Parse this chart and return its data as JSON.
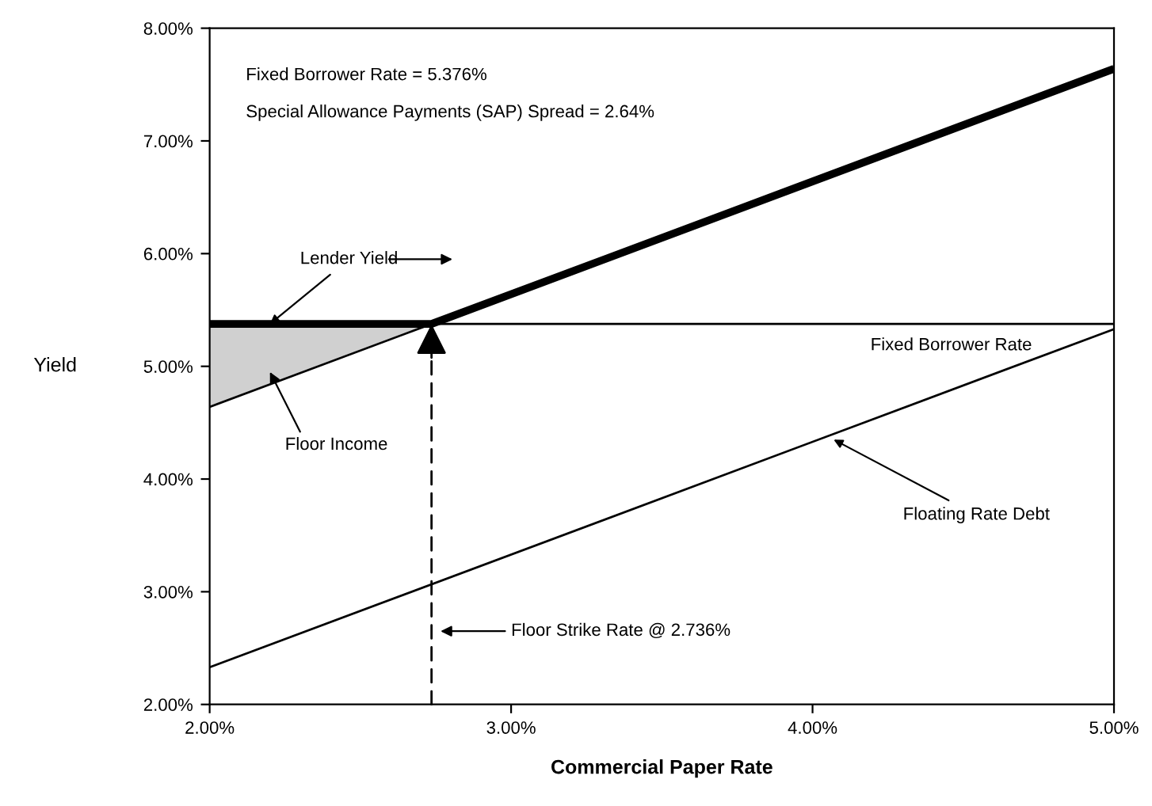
{
  "chart_data": {
    "type": "line",
    "xlabel": "Commercial Paper Rate",
    "ylabel": "Yield",
    "xlim": [
      2,
      5
    ],
    "ylim": [
      2,
      8
    ],
    "xticks": [
      {
        "value": 2,
        "label": "2.00%"
      },
      {
        "value": 3,
        "label": "3.00%"
      },
      {
        "value": 4,
        "label": "4.00%"
      },
      {
        "value": 5,
        "label": "5.00%"
      }
    ],
    "yticks": [
      {
        "value": 2,
        "label": "2.00%"
      },
      {
        "value": 3,
        "label": "3.00%"
      },
      {
        "value": 4,
        "label": "4.00%"
      },
      {
        "value": 5,
        "label": "5.00%"
      },
      {
        "value": 6,
        "label": "6.00%"
      },
      {
        "value": 7,
        "label": "7.00%"
      },
      {
        "value": 8,
        "label": "8.00%"
      }
    ],
    "grid": false,
    "legend": false,
    "marker": "none",
    "line_style": "solid",
    "series": [
      {
        "color": "#000000",
        "x": [
          2,
          2.736
        ],
        "values": [
          4.64,
          5.376
        ],
        "lower": [
          4.64,
          5.376
        ],
        "upper": [
          5.376,
          5.376
        ]
      },
      {
        "name": "Fixed Borrower Rate",
        "color": "#000000",
        "x": [
          2,
          5
        ],
        "values": [
          5.376,
          5.376
        ]
      },
      {
        "color": "#000000",
        "x": [
          2,
          5
        ],
        "values": [
          2.33,
          5.33
        ]
      },
      {
        "color": "#000000",
        "x": [
          2,
          2.736,
          5
        ],
        "values": [
          5.376,
          5.376,
          7.64
        ]
      }
    ],
    "annotations": [
      "Fixed Borrower Rate = 5.376%",
      "Special Allowance Payments (SAP) Spread = 2.64%",
      {
        "text": "Lender Yield",
        "x": 2.2,
        "y": 5.376
      },
      "Floor Income",
      {
        "text": "Floating Rate Debt",
        "x": 4.07,
        "y": 4.35
      },
      "Floor Strike Rate @ 2.736%"
    ]
  }
}
